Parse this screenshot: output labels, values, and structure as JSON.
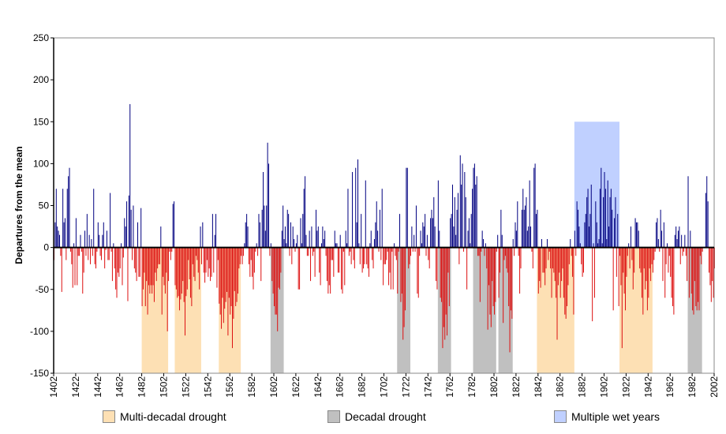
{
  "chart_data": {
    "type": "bar",
    "title": "",
    "xlabel": "",
    "ylabel": "Departures from the mean",
    "x_start": 1402,
    "x_end": 2002,
    "xlim": [
      1402,
      2002
    ],
    "ylim": [
      -150,
      250
    ],
    "x_ticks": [
      1402,
      1422,
      1442,
      1462,
      1482,
      1502,
      1522,
      1542,
      1562,
      1582,
      1602,
      1622,
      1642,
      1662,
      1682,
      1702,
      1722,
      1742,
      1762,
      1782,
      1802,
      1822,
      1842,
      1862,
      1882,
      1902,
      1922,
      1942,
      1962,
      1982,
      2002
    ],
    "y_ticks": [
      -150,
      -100,
      -50,
      0,
      50,
      100,
      150,
      200,
      250
    ],
    "grid": false,
    "colors": {
      "positive": "#000080",
      "negative": "#dd1111",
      "multi_decadal": "#fde0b4",
      "decadal": "#c0c0c0",
      "wet": "#c0d0ff"
    },
    "shaded_periods": [
      {
        "type": "multi_decadal",
        "start": 1482,
        "end": 1505
      },
      {
        "type": "multi_decadal",
        "start": 1512,
        "end": 1535
      },
      {
        "type": "multi_decadal",
        "start": 1552,
        "end": 1571
      },
      {
        "type": "decadal",
        "start": 1599,
        "end": 1610
      },
      {
        "type": "decadal",
        "start": 1714,
        "end": 1725
      },
      {
        "type": "decadal",
        "start": 1751,
        "end": 1762
      },
      {
        "type": "decadal",
        "start": 1783,
        "end": 1803
      },
      {
        "type": "decadal",
        "start": 1806,
        "end": 1818
      },
      {
        "type": "multi_decadal",
        "start": 1841,
        "end": 1874
      },
      {
        "type": "wet",
        "start": 1875,
        "end": 1915,
        "top": 150
      },
      {
        "type": "multi_decadal",
        "start": 1916,
        "end": 1945
      },
      {
        "type": "decadal",
        "start": 1978,
        "end": 1990
      }
    ],
    "legend": [
      {
        "key": "multi_decadal",
        "label": "Multi-decadal drought"
      },
      {
        "key": "decadal",
        "label": "Decadal drought"
      },
      {
        "key": "wet",
        "label": "Multiple wet years"
      }
    ],
    "legend_position": "bottom",
    "values": [
      -15,
      30,
      70,
      25,
      20,
      15,
      -10,
      -53,
      70,
      30,
      35,
      -15,
      70,
      85,
      95,
      -5,
      -20,
      -48,
      5,
      -45,
      35,
      -45,
      -10,
      -10,
      15,
      -5,
      -55,
      -30,
      20,
      -10,
      40,
      -15,
      15,
      -20,
      10,
      -10,
      70,
      -20,
      -25,
      -5,
      30,
      15,
      -10,
      -15,
      15,
      30,
      -25,
      -3,
      20,
      -15,
      -15,
      65,
      -5,
      -40,
      5,
      -25,
      -50,
      -60,
      -30,
      -35,
      -25,
      5,
      -45,
      -12,
      35,
      25,
      55,
      -64,
      62,
      171,
      45,
      -15,
      50,
      -25,
      -30,
      -40,
      30,
      -35,
      -35,
      47,
      -70,
      -50,
      -30,
      -70,
      -40,
      -80,
      -45,
      -55,
      -45,
      -55,
      -45,
      -65,
      -30,
      -40,
      -25,
      -20,
      -20,
      25,
      -80,
      -35,
      -45,
      -55,
      -30,
      -100,
      -40,
      -5,
      -15,
      -5,
      52,
      55,
      -45,
      -50,
      -60,
      -58,
      -75,
      -62,
      -55,
      -40,
      -65,
      -105,
      -58,
      -50,
      -15,
      -38,
      -60,
      -70,
      -20,
      -35,
      -40,
      -10,
      -15,
      -30,
      -50,
      25,
      -20,
      30,
      -30,
      -42,
      -30,
      -15,
      -35,
      -25,
      -40,
      -35,
      40,
      -30,
      15,
      40,
      -48,
      -15,
      -67,
      -80,
      -97,
      -60,
      -90,
      -73,
      -65,
      -53,
      -105,
      -60,
      -80,
      -70,
      -120,
      -85,
      -52,
      -70,
      -65,
      -55,
      -25,
      -20,
      -10,
      -20,
      -10,
      5,
      30,
      40,
      25,
      -20,
      -35,
      -15,
      -35,
      -50,
      -30,
      -5,
      5,
      -10,
      40,
      30,
      -40,
      45,
      90,
      50,
      20,
      50,
      125,
      100,
      -10,
      5,
      -40,
      -55,
      -70,
      -80,
      -80,
      -100,
      -48,
      -50,
      -30,
      20,
      50,
      10,
      25,
      5,
      45,
      40,
      -10,
      30,
      -20,
      25,
      10,
      -5,
      5,
      15,
      -50,
      -50,
      35,
      5,
      40,
      70,
      85,
      15,
      -10,
      -10,
      20,
      -40,
      25,
      -10,
      -5,
      -35,
      45,
      20,
      25,
      -30,
      -45,
      5,
      25,
      10,
      20,
      -10,
      -40,
      -55,
      -45,
      -55,
      -15,
      -15,
      -35,
      20,
      5,
      5,
      -30,
      -30,
      15,
      -50,
      -55,
      -5,
      -45,
      20,
      5,
      70,
      -10,
      -5,
      -20,
      90,
      -15,
      -25,
      95,
      30,
      105,
      5,
      -20,
      40,
      -30,
      -25,
      -20,
      80,
      -20,
      -25,
      -35,
      5,
      20,
      -15,
      -25,
      10,
      30,
      55,
      20,
      -5,
      45,
      -15,
      70,
      -45,
      -20,
      -20,
      -15,
      -5,
      -45,
      -30,
      -50,
      -5,
      -50,
      5,
      -10,
      -15,
      -55,
      -5,
      40,
      -65,
      -55,
      -110,
      -95,
      -75,
      95,
      95,
      -25,
      -20,
      -10,
      25,
      -5,
      15,
      -5,
      50,
      -55,
      -60,
      -10,
      20,
      5,
      30,
      25,
      40,
      -10,
      15,
      -15,
      -25,
      35,
      45,
      35,
      60,
      25,
      -40,
      -50,
      80,
      20,
      -60,
      -65,
      -120,
      -95,
      -110,
      -80,
      -105,
      -30,
      -70,
      35,
      40,
      75,
      25,
      60,
      15,
      45,
      65,
      -20,
      110,
      75,
      100,
      -5,
      90,
      60,
      -50,
      20,
      35,
      5,
      40,
      70,
      95,
      100,
      75,
      85,
      -10,
      -10,
      -65,
      -5,
      20,
      10,
      -10,
      5,
      -25,
      -98,
      -45,
      -80,
      -95,
      -40,
      -70,
      -80,
      -65,
      -5,
      15,
      -60,
      -30,
      45,
      15,
      -90,
      -15,
      -10,
      -25,
      -30,
      -70,
      -125,
      -75,
      -85,
      10,
      -10,
      30,
      20,
      55,
      -10,
      -55,
      -25,
      45,
      70,
      45,
      50,
      60,
      20,
      25,
      80,
      25,
      -5,
      -25,
      95,
      100,
      40,
      45,
      -55,
      -40,
      -48,
      10,
      -30,
      -30,
      -45,
      -25,
      10,
      -15,
      -5,
      -25,
      -60,
      -25,
      -30,
      -40,
      -60,
      -110,
      -45,
      -30,
      -60,
      -40,
      -25,
      -60,
      -80,
      -85,
      -70,
      -45,
      -20,
      10,
      -10,
      -35,
      -80,
      20,
      -10,
      55,
      45,
      25,
      5,
      -20,
      -35,
      -30,
      30,
      40,
      60,
      70,
      25,
      40,
      75,
      -88,
      5,
      -60,
      55,
      30,
      5,
      10,
      70,
      95,
      5,
      60,
      90,
      70,
      10,
      80,
      25,
      60,
      70,
      45,
      -75,
      35,
      60,
      -35,
      40,
      -70,
      -10,
      -45,
      -120,
      -30,
      -55,
      -75,
      -35,
      -10,
      5,
      -25,
      25,
      -15,
      -50,
      -30,
      35,
      30,
      30,
      20,
      -25,
      -30,
      -60,
      -80,
      -25,
      -50,
      -40,
      -75,
      -60,
      -25,
      -40,
      -20,
      -30,
      -15,
      -5,
      30,
      35,
      10,
      -5,
      45,
      20,
      -40,
      30,
      -60,
      -20,
      5,
      -30,
      -10,
      -35,
      -60,
      -70,
      -80,
      15,
      25,
      10,
      20,
      25,
      -20,
      15,
      -10,
      -5,
      15,
      -10,
      -40,
      85,
      -60,
      20,
      -55,
      -75,
      -80,
      -40,
      -70,
      -75,
      -65,
      -75,
      -10,
      -20,
      -5,
      0,
      0,
      65,
      85,
      55,
      -30,
      -45,
      -65,
      -40,
      -60,
      -25
    ]
  }
}
